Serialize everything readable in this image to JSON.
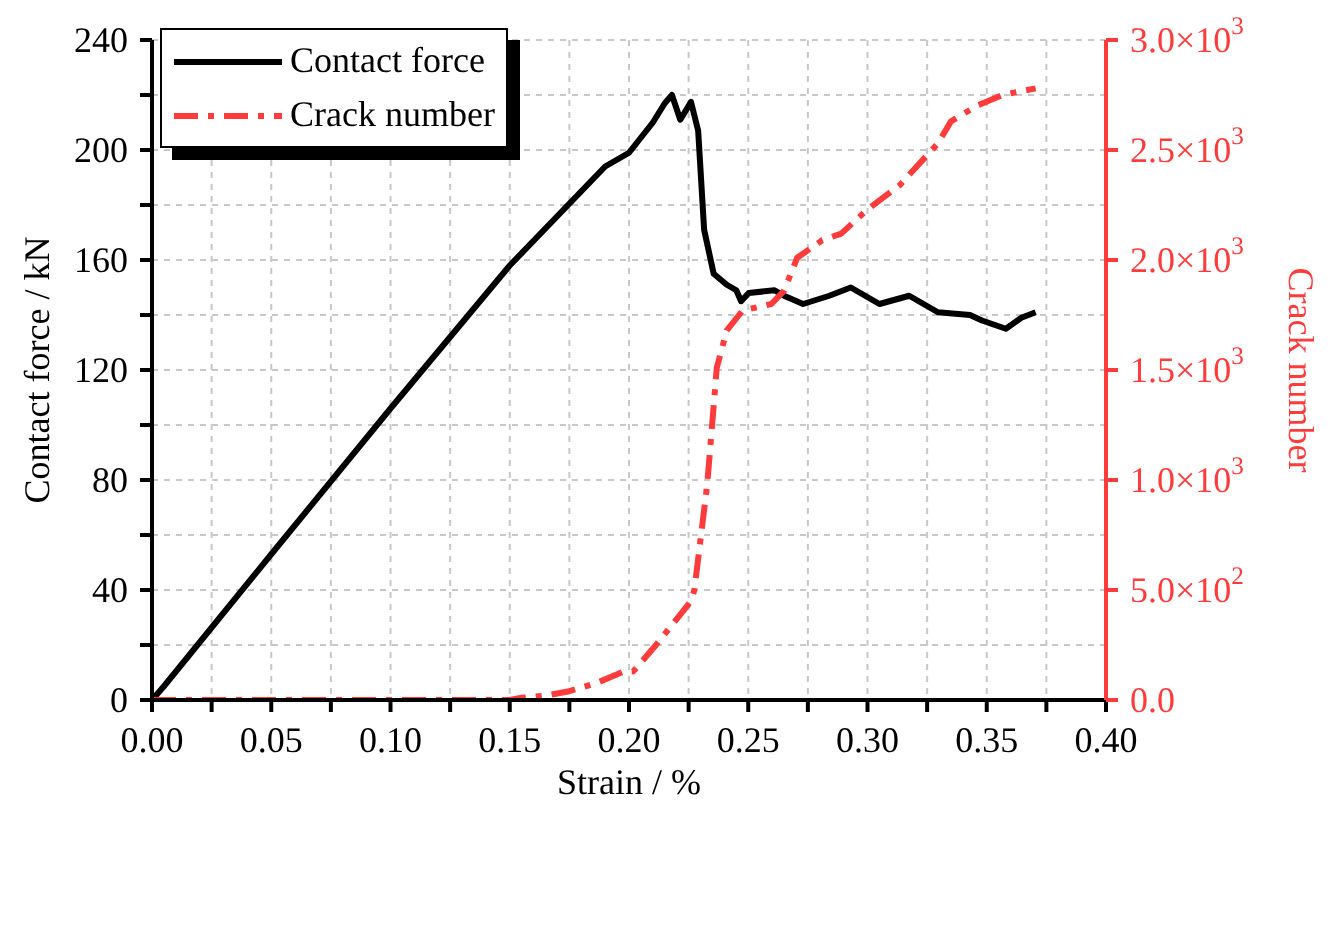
{
  "chart_data": {
    "type": "line",
    "xlabel": "Strain / %",
    "ylabel": "Contact force / kN",
    "y2label": "Crack number",
    "xlim": [
      0,
      0.4
    ],
    "xticks": [
      {
        "value": 0,
        "label": "0.00"
      },
      {
        "value": 0.025,
        "label": null
      },
      {
        "value": 0.05,
        "label": "0.05"
      },
      {
        "value": 0.075,
        "label": null
      },
      {
        "value": 0.1,
        "label": "0.10"
      },
      {
        "value": 0.125,
        "label": null
      },
      {
        "value": 0.15,
        "label": "0.15"
      },
      {
        "value": 0.175,
        "label": null
      },
      {
        "value": 0.2,
        "label": "0.20"
      },
      {
        "value": 0.225,
        "label": null
      },
      {
        "value": 0.25,
        "label": "0.25"
      },
      {
        "value": 0.275,
        "label": null
      },
      {
        "value": 0.3,
        "label": "0.30"
      },
      {
        "value": 0.325,
        "label": null
      },
      {
        "value": 0.35,
        "label": "0.35"
      },
      {
        "value": 0.375,
        "label": null
      },
      {
        "value": 0.4,
        "label": "0.40"
      }
    ],
    "ylim": [
      0,
      240
    ],
    "yticks": [
      0,
      {
        "value": 20,
        "label": null
      },
      40,
      {
        "value": 60,
        "label": null
      },
      80,
      {
        "value": 100,
        "label": null
      },
      120,
      {
        "value": 140,
        "label": null
      },
      160,
      {
        "value": 180,
        "label": null
      },
      200,
      {
        "value": 220,
        "label": null
      },
      240
    ],
    "y2lim": [
      0,
      3000
    ],
    "y2ticks": [
      {
        "value": 0,
        "label": "0.0"
      },
      {
        "value": 500,
        "label": "5.0×10$^{2}$"
      },
      {
        "value": 1000,
        "label": "1.0×10$^{3}$"
      },
      {
        "value": 1500,
        "label": "1.5×10$^{3}$"
      },
      {
        "value": 2000,
        "label": "2.0×10$^{3}$"
      },
      {
        "value": 2500,
        "label": "2.5×10$^{3}$"
      },
      {
        "value": 3000,
        "label": "3.0×10$^{3}$"
      }
    ],
    "grid": true,
    "legend": "top left",
    "marker": "none",
    "series": [
      {
        "name": "Contact force",
        "color": "#000000",
        "line_style": "solid",
        "x": [
          0,
          0.005,
          0.05,
          0.1,
          0.15,
          0.19,
          0.2,
          0.21,
          0.215,
          0.218,
          0.2215,
          0.226,
          0.229,
          0.2315,
          0.2355,
          0.241,
          0.245,
          0.247,
          0.2502,
          0.261,
          0.265,
          0.273,
          0.284,
          0.293,
          0.305,
          0.3175,
          0.3295,
          0.343,
          0.348,
          0.358,
          0.3645,
          0.3705
        ],
        "values": [
          0,
          5,
          53,
          106,
          158,
          194,
          199,
          210,
          217,
          220,
          211,
          217.5,
          207,
          171,
          155,
          151,
          149,
          145,
          148,
          149,
          147,
          144,
          147,
          150,
          144,
          147,
          141,
          140,
          138,
          135,
          139,
          141
        ]
      },
      {
        "name": "Crack number",
        "color": "#ff3b3b",
        "line_style": "dashed",
        "axis": "y2",
        "x": [
          0,
          0.15,
          0.155,
          0.165,
          0.175,
          0.187,
          0.198,
          0.2018,
          0.2113,
          0.2194,
          0.226,
          0.2274,
          0.2328,
          0.2368,
          0.241,
          0.2476,
          0.2597,
          0.265,
          0.2705,
          0.281,
          0.289,
          0.3,
          0.3135,
          0.3295,
          0.335,
          0.3457,
          0.3565,
          0.3705
        ],
        "values": [
          0,
          0,
          10,
          20,
          40,
          80,
          130,
          130,
          250,
          360,
          450,
          500,
          980,
          1510,
          1680,
          1770,
          1800,
          1860,
          2010,
          2090,
          2120,
          2230,
          2340,
          2530,
          2630,
          2700,
          2750,
          2780
        ]
      }
    ]
  }
}
